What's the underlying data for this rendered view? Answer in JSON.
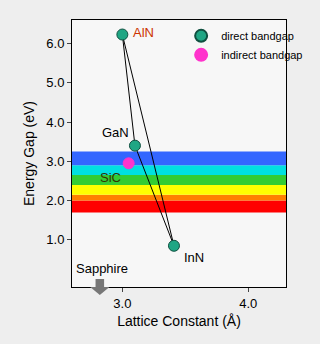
{
  "chart_data": {
    "type": "scatter",
    "xlabel": "Lattice Constant (Å)",
    "ylabel": "Energy Gap (eV)",
    "xlim": [
      2.6,
      4.3
    ],
    "ylim": [
      -0.2,
      6.6
    ],
    "xticks": [
      {
        "value": 3,
        "label": "3.0"
      },
      {
        "value": 4,
        "label": "4.0"
      }
    ],
    "yticks": [
      {
        "value": 1,
        "label": "1.0"
      },
      {
        "value": 2,
        "label": "2.0"
      },
      {
        "value": 3,
        "label": "3.0"
      },
      {
        "value": 4,
        "label": "4.0"
      },
      {
        "value": 5,
        "label": "5.0"
      },
      {
        "value": 6,
        "label": "6.0"
      }
    ],
    "legend": "upper right",
    "series": [
      {
        "name": "direct bandgap",
        "color": "#1fa684",
        "marker": "circle",
        "line_style": "solid",
        "labels": [
          "AlN",
          "GaN",
          "InN"
        ],
        "x": [
          3.0,
          3.1,
          3.41
        ],
        "values": [
          6.23,
          3.4,
          0.85
        ]
      },
      {
        "name": "indirect bandgap",
        "color": "#ff33cc",
        "marker": "circle",
        "labels": [
          "SiC"
        ],
        "x": [
          3.05
        ],
        "values": [
          2.95
        ]
      }
    ],
    "bands": [
      {
        "color": "#ff0000",
        "from": 1.7,
        "to": 2.0
      },
      {
        "color": "#ff8000",
        "from": 2.0,
        "to": 2.15
      },
      {
        "color": "#ffff00",
        "from": 2.15,
        "to": 2.4
      },
      {
        "color": "#33cc33",
        "from": 2.4,
        "to": 2.65
      },
      {
        "color": "#00e0e0",
        "from": 2.65,
        "to": 2.9
      },
      {
        "color": "#3366ff",
        "from": 2.9,
        "to": 3.25
      }
    ],
    "annotations": [
      "Sapphire"
    ]
  }
}
